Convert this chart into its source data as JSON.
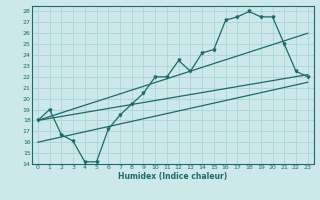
{
  "xlabel": "Humidex (Indice chaleur)",
  "bg_color": "#cce8e8",
  "grid_color": "#aad4d4",
  "line_color": "#1a6b6b",
  "xlim": [
    -0.5,
    23.5
  ],
  "ylim": [
    14,
    28.5
  ],
  "xticks": [
    0,
    1,
    2,
    3,
    4,
    5,
    6,
    7,
    8,
    9,
    10,
    11,
    12,
    13,
    14,
    15,
    16,
    17,
    18,
    19,
    20,
    21,
    22,
    23
  ],
  "yticks": [
    14,
    15,
    16,
    17,
    18,
    19,
    20,
    21,
    22,
    23,
    24,
    25,
    26,
    27,
    28
  ],
  "main_line_x": [
    0,
    1,
    2,
    3,
    4,
    5,
    6,
    7,
    8,
    9,
    10,
    11,
    12,
    13,
    14,
    15,
    16,
    17,
    18,
    19,
    20,
    21,
    22,
    23
  ],
  "main_line_y": [
    18.0,
    19.0,
    16.7,
    16.1,
    14.2,
    14.2,
    17.2,
    18.5,
    19.5,
    20.5,
    22.0,
    22.0,
    23.5,
    22.5,
    24.2,
    24.5,
    27.2,
    27.5,
    28.0,
    27.5,
    27.5,
    25.0,
    22.5,
    22.0
  ],
  "upper_line_x": [
    0,
    23
  ],
  "upper_line_y": [
    18.0,
    26.0
  ],
  "middle_line_x": [
    0,
    23
  ],
  "middle_line_y": [
    18.0,
    22.2
  ],
  "lower_line_x": [
    0,
    23
  ],
  "lower_line_y": [
    16.0,
    21.5
  ]
}
